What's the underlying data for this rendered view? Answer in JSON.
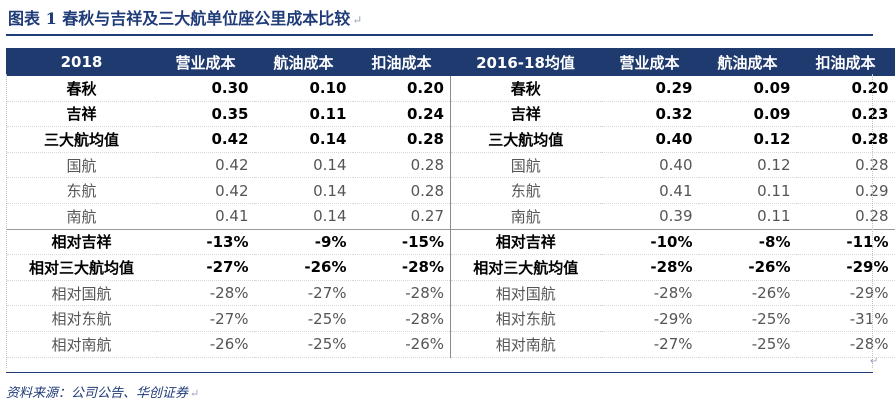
{
  "title": "图表 1   春秋与吉祥及三大航单位座公里成本比较",
  "paragraph_mark": "↵",
  "header": [
    "2018",
    "营业成本",
    "航油成本",
    "扣油成本",
    "2016-18均值",
    "营业成本",
    "航油成本",
    "扣油成本"
  ],
  "rows": [
    {
      "style": "bold",
      "left": [
        "春秋",
        "0.30",
        "0.10",
        "0.20"
      ],
      "right": [
        "春秋",
        "0.29",
        "0.09",
        "0.20"
      ]
    },
    {
      "style": "bold",
      "left": [
        "吉祥",
        "0.35",
        "0.11",
        "0.24"
      ],
      "right": [
        "吉祥",
        "0.32",
        "0.09",
        "0.23"
      ]
    },
    {
      "style": "bold",
      "left": [
        "三大航均值",
        "0.42",
        "0.14",
        "0.28"
      ],
      "right": [
        "三大航均值",
        "0.40",
        "0.12",
        "0.28"
      ]
    },
    {
      "style": "light",
      "left": [
        "国航",
        "0.42",
        "0.14",
        "0.28"
      ],
      "right": [
        "国航",
        "0.40",
        "0.12",
        "0.28"
      ]
    },
    {
      "style": "light",
      "left": [
        "东航",
        "0.42",
        "0.14",
        "0.28"
      ],
      "right": [
        "东航",
        "0.41",
        "0.11",
        "0.29"
      ]
    },
    {
      "style": "light",
      "left": [
        "南航",
        "0.41",
        "0.14",
        "0.27"
      ],
      "right": [
        "南航",
        "0.39",
        "0.11",
        "0.28"
      ]
    },
    {
      "style": "bold",
      "left": [
        "相对吉祥",
        "-13%",
        "-9%",
        "-15%"
      ],
      "right": [
        "相对吉祥",
        "-10%",
        "-8%",
        "-11%"
      ]
    },
    {
      "style": "bold",
      "left": [
        "相对三大航均值",
        "-27%",
        "-26%",
        "-28%"
      ],
      "right": [
        "相对三大航均值",
        "-28%",
        "-26%",
        "-29%"
      ]
    },
    {
      "style": "light",
      "left": [
        "相对国航",
        "-28%",
        "-27%",
        "-28%"
      ],
      "right": [
        "相对国航",
        "-28%",
        "-26%",
        "-29%"
      ]
    },
    {
      "style": "light",
      "left": [
        "相对东航",
        "-27%",
        "-25%",
        "-28%"
      ],
      "right": [
        "相对东航",
        "-29%",
        "-25%",
        "-31%"
      ]
    },
    {
      "style": "light",
      "left": [
        "相对南航",
        "-26%",
        "-25%",
        "-26%"
      ],
      "right": [
        "相对南航",
        "-27%",
        "-25%",
        "-28%"
      ]
    }
  ],
  "source": "资料来源：公司公告、华创证券",
  "colors": {
    "accent": "#1f3a6e",
    "title": "#1f3b78"
  }
}
